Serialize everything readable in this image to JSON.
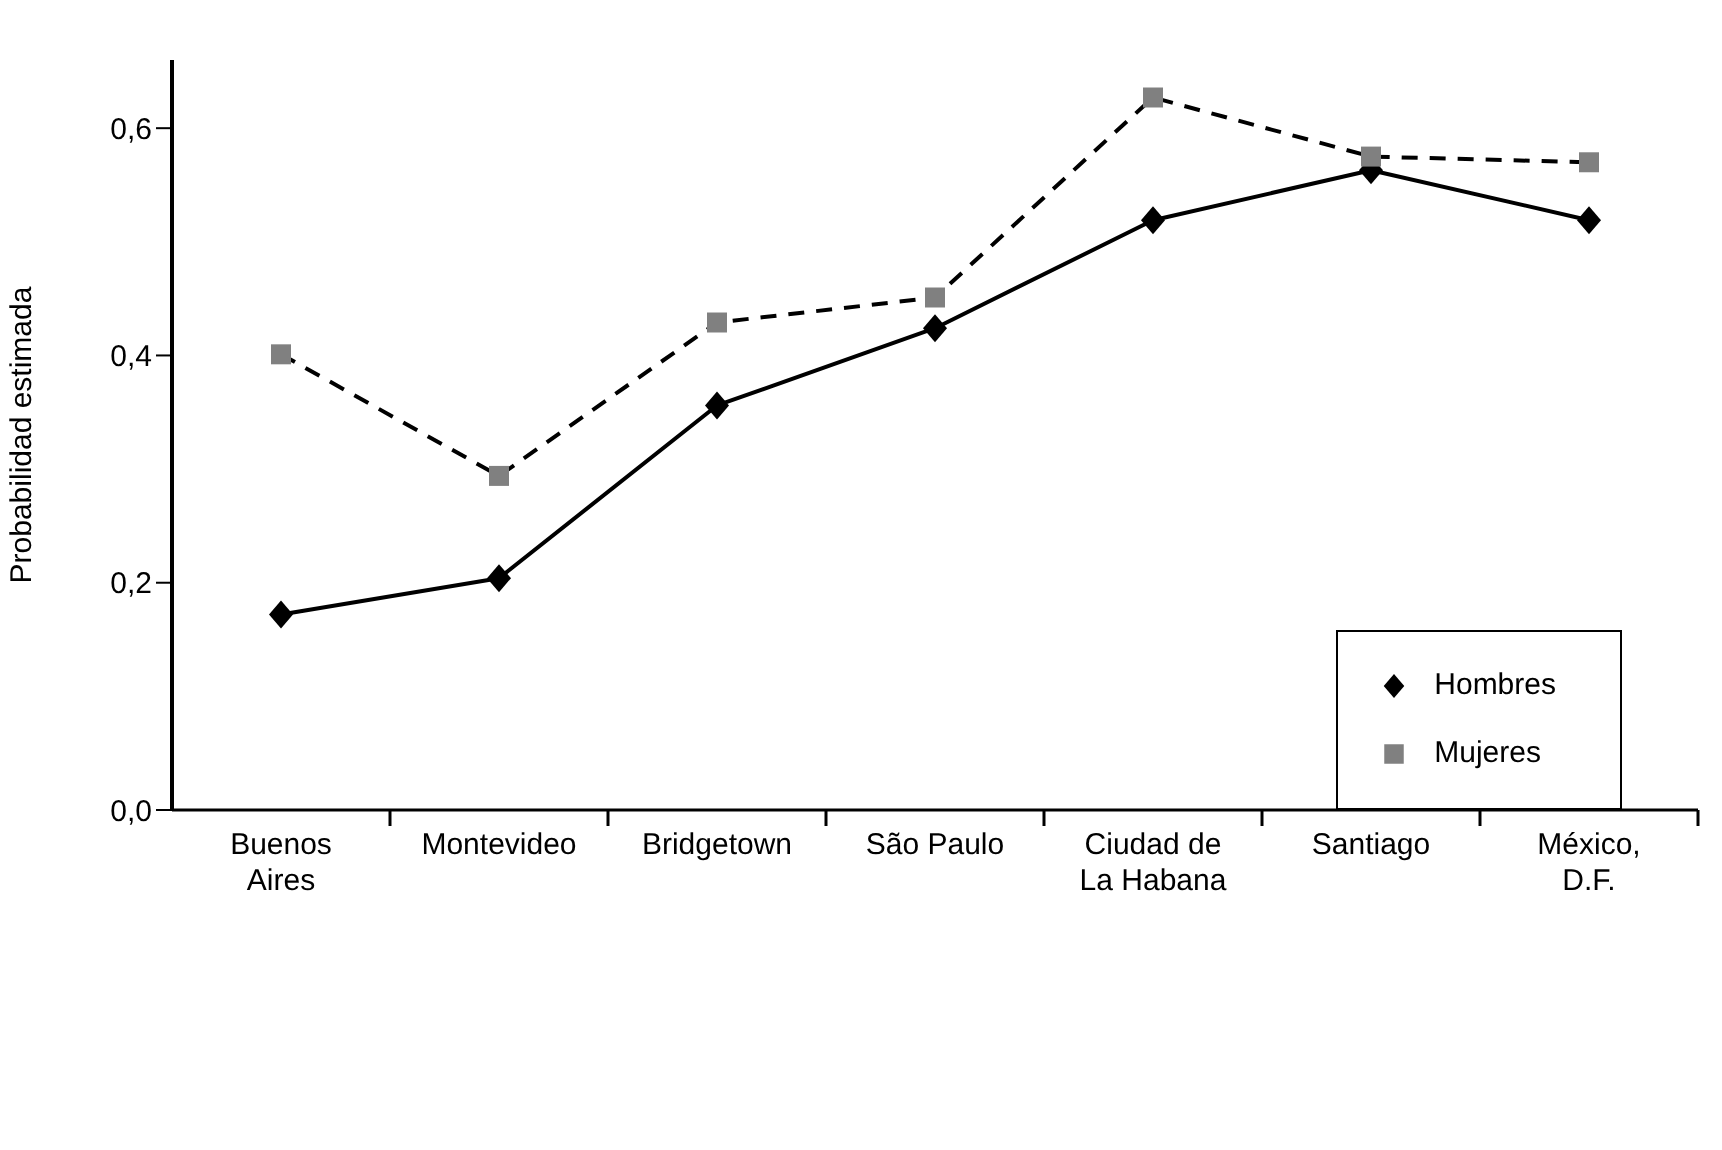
{
  "chart_data": {
    "type": "line",
    "ylabel": "Probabilidad estimada",
    "categories": [
      "Buenos\nAires",
      "Montevideo",
      "Bridgetown",
      "São Paulo",
      "Ciudad de\nLa Habana",
      "Santiago",
      "México,\nD.F."
    ],
    "series": [
      {
        "name": "Hombres",
        "color": "#000000",
        "marker": "diamond",
        "line_style": "solid",
        "values": [
          0.172,
          0.204,
          0.356,
          0.424,
          0.519,
          0.563,
          0.519
        ]
      },
      {
        "name": "Mujeres",
        "color": "#808080",
        "marker": "square",
        "line_style": "dashed",
        "values": [
          0.401,
          0.294,
          0.429,
          0.451,
          0.627,
          0.575,
          0.57
        ]
      }
    ],
    "ylim": [
      0,
      0.66
    ],
    "yticks": [
      {
        "value": 0,
        "label": "0,0"
      },
      {
        "value": 0.2,
        "label": "0,2"
      },
      {
        "value": 0.4,
        "label": "0,4"
      },
      {
        "value": 0.6,
        "label": "0,6"
      }
    ],
    "grid": false,
    "legend": "right"
  }
}
